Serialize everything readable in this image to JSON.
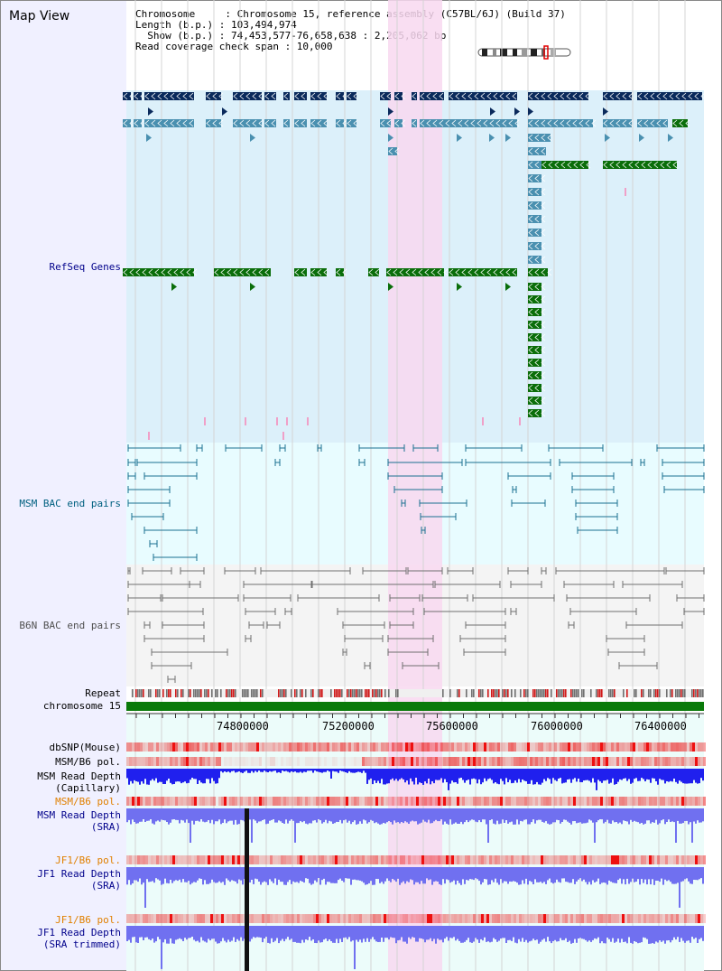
{
  "page": {
    "title": "Map View"
  },
  "info": {
    "line1": "Chromosome     : Chromosome 15, reference assembly (C57BL/6J) (Build 37)",
    "line2": "Length (b.p.) : 103,494,974",
    "line3": "  Show (b.p.) : 74,453,577-76,658,638 : 2,205,062 bp",
    "line4": "Read coverage check span : 10,000"
  },
  "tracks": {
    "refseq": "RefSeq Genes",
    "msm_bac": "MSM BAC end pairs",
    "b6n_bac": "B6N BAC end pairs",
    "repeat": "Repeat",
    "chromosome": "chromosome 15",
    "dbsnp": "dbSNP(Mouse)",
    "msm_b6_pol_1": "MSM/B6 pol.",
    "msm_depth_cap_1": "MSM Read Depth",
    "msm_depth_cap_2": "(Capillary)",
    "msm_b6_pol_2": "MSM/B6 pol.",
    "msm_depth_sra_1": "MSM Read Depth",
    "msm_depth_sra_2": "(SRA)",
    "jf1_b6_pol_1": "JF1/B6 pol.",
    "jf1_depth_sra_1": "JF1 Read Depth",
    "jf1_depth_sra_2": "(SRA)",
    "jf1_b6_pol_2": "JF1/B6 pol.",
    "jf1_depth_trim_1": "JF1 Read Depth",
    "jf1_depth_trim_2": "(SRA trimmed)"
  },
  "ruler": {
    "ticks": [
      "74800000",
      "75200000",
      "75600000",
      "76000000",
      "76400000"
    ]
  },
  "colors": {
    "refseq_bg": "#dcf0fa",
    "bac_bg": "#e8fcff",
    "highlight": "#f8d8f0",
    "gene_navy": "#0a2a5c",
    "gene_steel": "#4a90b0",
    "gene_green": "#0a6e0a",
    "chromosome_green": "#0a7a0a",
    "depth_blue": "#2020ee",
    "depth_light": "#7070f0"
  }
}
